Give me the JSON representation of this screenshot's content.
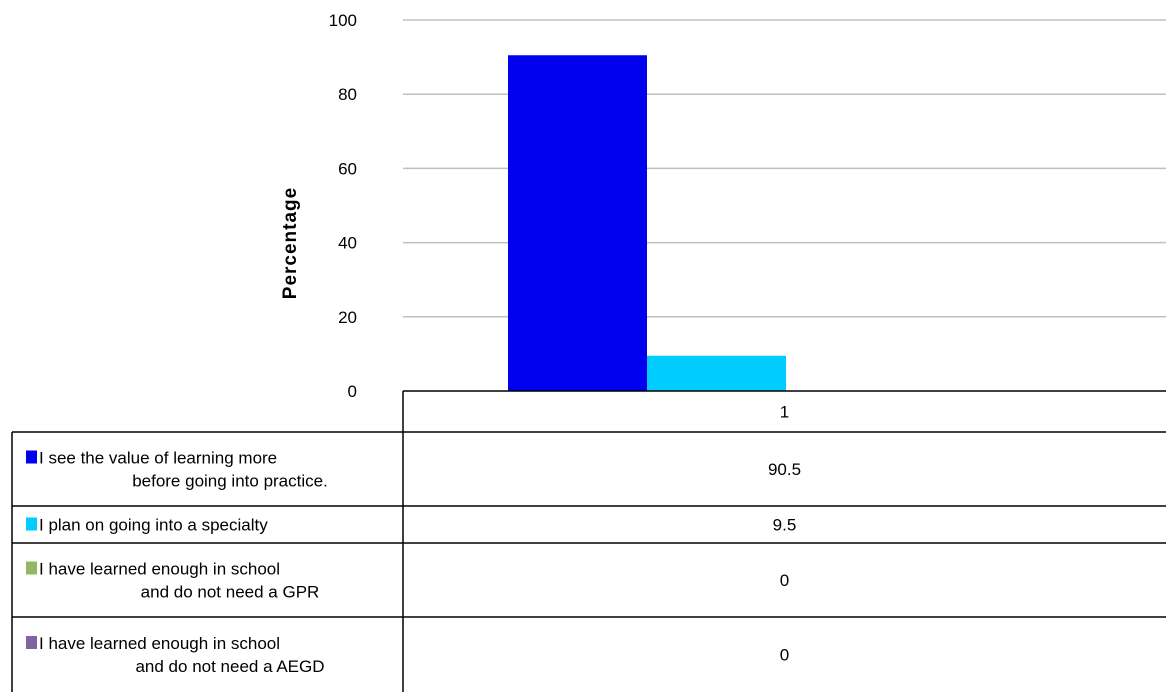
{
  "chart_data": {
    "type": "bar",
    "title": "",
    "xlabel": "",
    "ylabel": "Percentage",
    "ylim": [
      0,
      100
    ],
    "yticks": [
      0,
      20,
      40,
      60,
      80,
      100
    ],
    "ytick_labels": [
      "0",
      "20",
      "40",
      "60",
      "80",
      "100"
    ],
    "grid": true,
    "legend": "data-table-below",
    "categories": [
      "1"
    ],
    "series": [
      {
        "name": "I see the value of learning more before going into practice.",
        "label_lines": [
          "I see the value of learning more",
          "before going into practice."
        ],
        "color": "#0000ee",
        "values": [
          90.5
        ],
        "value_labels": [
          "90.5"
        ]
      },
      {
        "name": "I plan on going into a specialty",
        "label_lines": [
          "I plan on going into a specialty"
        ],
        "color": "#00ccff",
        "values": [
          9.5
        ],
        "value_labels": [
          "9.5"
        ]
      },
      {
        "name": "I have learned enough in school and do not need a GPR",
        "label_lines": [
          "I have learned enough in school",
          "and do not need a GPR"
        ],
        "color": "#92b866",
        "values": [
          0
        ],
        "value_labels": [
          "0"
        ]
      },
      {
        "name": "I have learned enough in school and do not need a AEGD",
        "label_lines": [
          "I have learned enough in school",
          "and do not need a AEGD"
        ],
        "color": "#8064a2",
        "values": [
          0
        ],
        "value_labels": [
          "0"
        ]
      }
    ]
  }
}
